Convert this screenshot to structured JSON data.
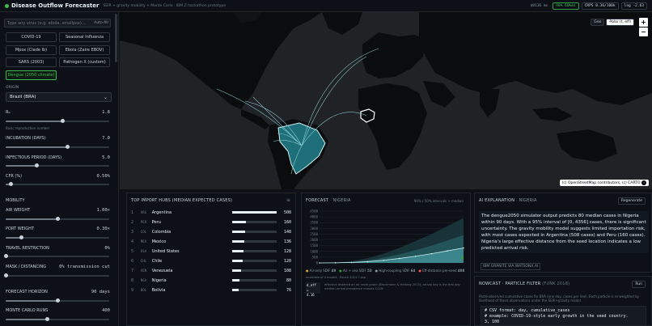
{
  "header": {
    "title": "Disease Outflow Forecaster",
    "subtitle": "SEIR + gravity mobility + Monte Carlo · IBM Z hackathon prototype",
    "budget": "$8136",
    "budget_unit": "ms",
    "coverage": "98% 60%ms",
    "crps": "CRPS 0.36/100k",
    "log": "log -2.63"
  },
  "sidebar": {
    "search_placeholder": "Type any virus (e.g. ebola, smallpox)...",
    "search_button": "Auto-fill",
    "viruses": [
      {
        "label": "COVID-19",
        "active": false
      },
      {
        "label": "Seasonal Influenza",
        "active": false
      },
      {
        "label": "Mpox (Clade Ib)",
        "active": false
      },
      {
        "label": "Ebola (Zaire EBOV)",
        "active": false
      },
      {
        "label": "SARS (2003)",
        "active": false
      },
      {
        "label": "Pathogen X (custom)",
        "active": false
      },
      {
        "label": "Dengue (2050 climate)",
        "active": true
      }
    ],
    "origin_label": "ORIGIN",
    "origin_value": "Brazil (BRA)",
    "r0_label": "R₀",
    "r0_value": "1.8",
    "r0_hint": "Basic reproduction number",
    "r0_level": 0.55,
    "incubation_label": "INCUBATION (DAYS)",
    "incubation_value": "7.0",
    "incubation_level": 0.6,
    "infectious_label": "INFECTIOUS PERIOD (DAYS)",
    "infectious_value": "5.0",
    "infectious_level": 0.3,
    "cfr_label": "CFR (%)",
    "cfr_value": "0.50%",
    "cfr_level": 0.05,
    "mobility_label": "MOBILITY",
    "air_label": "AIR WEIGHT",
    "air_value": "1.00×",
    "air_level": 0.5,
    "port_label": "PORT WEIGHT",
    "port_value": "0.30×",
    "port_level": 0.15,
    "travel_label": "TRAVEL RESTRICTION",
    "travel_value": "0%",
    "travel_level": 0.0,
    "mask_label": "MASK / DISTANCING",
    "mask_value": "0% transmission cut",
    "mask_level": 0.0,
    "horizon_label": "FORECAST HORIZON",
    "horizon_value": "90 days",
    "horizon_level": 0.5,
    "mc_label": "MONTE CARLO RUNS",
    "mc_value": "400",
    "mc_level": 0.4
  },
  "map": {
    "projection_geo": "Geo",
    "projection_polar": "Polar (t, eff)",
    "zoom_in": "+",
    "zoom_out": "−",
    "attribution": "(c) OpenStreetMap contributors, (c) CARTO",
    "info_icon": "info-icon"
  },
  "hubs": {
    "title": "TOP IMPORT HUBS (MEDIAN EXPECTED CASES)",
    "rows": [
      {
        "n": "1",
        "code": "ARG",
        "name": "Argentina",
        "value": "508",
        "level": 1.0
      },
      {
        "n": "2",
        "code": "PER",
        "name": "Peru",
        "value": "160",
        "level": 0.32
      },
      {
        "n": "3",
        "code": "COL",
        "name": "Colombia",
        "value": "148",
        "level": 0.29
      },
      {
        "n": "4",
        "code": "MEX",
        "name": "Mexico",
        "value": "136",
        "level": 0.27
      },
      {
        "n": "5",
        "code": "USA",
        "name": "United States",
        "value": "128",
        "level": 0.25
      },
      {
        "n": "6",
        "code": "CHL",
        "name": "Chile",
        "value": "120",
        "level": 0.24
      },
      {
        "n": "7",
        "code": "VEN",
        "name": "Venezuela",
        "value": "108",
        "level": 0.21
      },
      {
        "n": "8",
        "code": "NGA",
        "name": "Nigeria",
        "value": "80",
        "level": 0.16
      },
      {
        "n": "9",
        "code": "BOL",
        "name": "Bolivia",
        "value": "76",
        "level": 0.15
      }
    ]
  },
  "forecast": {
    "title": "FORECAST",
    "country": "NIGERIA",
    "legend_text": "90% / 50% intervals + median",
    "legend_air": "Air-only SDIF",
    "legend_air_val": "49",
    "legend_air_sea": "Air + sea SDIF",
    "legend_air_sea_val": "53",
    "legend_hc": "High-coupling SDIF",
    "legend_hc_val": "64",
    "legend_dist": "Eff-distance pre-seed",
    "legend_dist_val": "408",
    "note": "ensemble of 4 models · Bench 2014-7-sep",
    "deff_label": "d_eff =",
    "deff_value": "4.16",
    "deff_desc": "effective distance on air route graph (Brockmann & Helbing 2013); arrival day is the first day median arrival prevalence crosses 1/10k",
    "chart_data": {
      "type": "area",
      "x_label": "",
      "y_label": "",
      "yticks": [
        "4500",
        "4000",
        "3500",
        "3000",
        "2500",
        "2000",
        "1500",
        "1000",
        "500",
        "0"
      ],
      "ylim": [
        0,
        4500
      ],
      "x": [
        0,
        10,
        20,
        30,
        40,
        50,
        60,
        70,
        80,
        90
      ],
      "series": [
        {
          "name": "",
          "values": [
            0,
            40,
            150,
            400,
            800,
            1300,
            1900,
            2500,
            3200,
            3900
          ]
        },
        {
          "name": "",
          "values": [
            0,
            20,
            80,
            220,
            450,
            750,
            1100,
            1500,
            1950,
            2400
          ]
        },
        {
          "name": "",
          "values": [
            0,
            10,
            40,
            110,
            230,
            390,
            580,
            800,
            1050,
            1300
          ]
        }
      ]
    }
  },
  "ai": {
    "title": "AI EXPLANATION",
    "country": "NIGERIA",
    "regenerate": "Regenerate",
    "text": "The dengue2050 simulator output predicts 80 median cases in Nigeria within 90 days. With a 95% interval of [0, 4356] cases, there is significant uncertainty. The gravity mobility model suggests limited importation risk, with most cases expected in Argentina (508 cases) and Peru (160 cases). Nigeria's large effective distance from the seed location indicates a low predicted arrival risk.",
    "tag": "IBM GRANITE VIA WATSONX.AI"
  },
  "nowcast": {
    "title": "NOWCAST · PARTICLE FILTER",
    "title_dim": "(FUNK 2018)",
    "run": "Run",
    "desc": "Paste observed cumulative cases for BRA (one day, cases per line). Each particle is re-weighted by likelihood of these observations under the SEIR+gravity model.",
    "code": [
      "# CSV format: day, cumulative_cases",
      "# example: COVID-19-style early growth in the seed country.",
      "3, 100"
    ]
  }
}
